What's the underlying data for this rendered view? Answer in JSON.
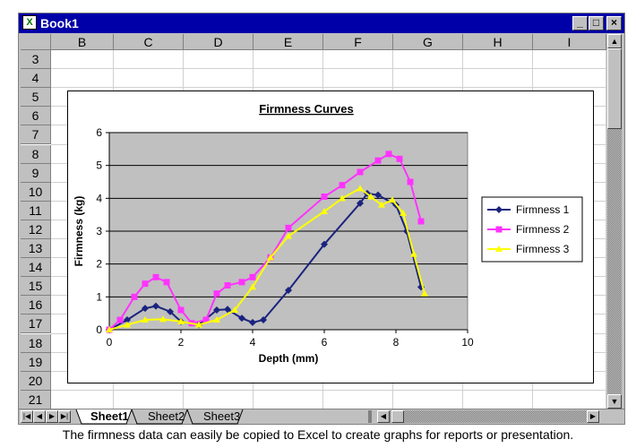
{
  "window": {
    "title": "Book1",
    "icon": "excel-icon"
  },
  "columns": [
    "B",
    "C",
    "D",
    "E",
    "F",
    "G",
    "H",
    "I"
  ],
  "rows": [
    "3",
    "4",
    "5",
    "6",
    "7",
    "8",
    "9",
    "10",
    "11",
    "12",
    "13",
    "14",
    "15",
    "16",
    "17",
    "18",
    "19",
    "20",
    "21"
  ],
  "sheets": [
    "Sheet1",
    "Sheet2",
    "Sheet3"
  ],
  "active_sheet": "Sheet1",
  "caption": "The firmness data can easily be copied to Excel to create graphs for reports or presentation.",
  "colors": {
    "titlebar": "#0000a8",
    "plot_bg": "#c0c0c0",
    "series1": "#1a237e",
    "series2": "#ff33ff",
    "series3": "#ffff00"
  },
  "chart_data": {
    "type": "scatter",
    "title": "Firmness Curves",
    "xlabel": "Depth (mm)",
    "ylabel": "Firmness (kg)",
    "xlim": [
      0,
      10
    ],
    "ylim": [
      0,
      6
    ],
    "xticks": [
      0,
      2,
      4,
      6,
      8,
      10
    ],
    "yticks": [
      0,
      1,
      2,
      3,
      4,
      5,
      6
    ],
    "grid": "horizontal",
    "legend_position": "right",
    "series": [
      {
        "name": "Firmness 1",
        "marker": "diamond",
        "color": "#1a237e",
        "points": [
          [
            0,
            0
          ],
          [
            0.5,
            0.3
          ],
          [
            1,
            0.65
          ],
          [
            1.3,
            0.72
          ],
          [
            1.7,
            0.55
          ],
          [
            2,
            0.25
          ],
          [
            2.5,
            0.15
          ],
          [
            3,
            0.6
          ],
          [
            3.3,
            0.62
          ],
          [
            3.7,
            0.35
          ],
          [
            4,
            0.22
          ],
          [
            4.3,
            0.3
          ],
          [
            5,
            1.2
          ],
          [
            6,
            2.6
          ],
          [
            7,
            3.85
          ],
          [
            7.2,
            4.15
          ],
          [
            7.5,
            4.1
          ],
          [
            8,
            3.8
          ],
          [
            8.3,
            3
          ],
          [
            8.7,
            1.3
          ]
        ]
      },
      {
        "name": "Firmness 2",
        "marker": "square",
        "color": "#ff33ff",
        "points": [
          [
            0,
            0
          ],
          [
            0.3,
            0.3
          ],
          [
            0.7,
            1
          ],
          [
            1,
            1.4
          ],
          [
            1.3,
            1.6
          ],
          [
            1.6,
            1.45
          ],
          [
            2,
            0.6
          ],
          [
            2.3,
            0.2
          ],
          [
            2.7,
            0.3
          ],
          [
            3,
            1.1
          ],
          [
            3.3,
            1.35
          ],
          [
            3.7,
            1.45
          ],
          [
            4,
            1.6
          ],
          [
            4.5,
            2.2
          ],
          [
            5,
            3.1
          ],
          [
            6,
            4.05
          ],
          [
            6.5,
            4.4
          ],
          [
            7,
            4.8
          ],
          [
            7.5,
            5.15
          ],
          [
            7.8,
            5.35
          ],
          [
            8.1,
            5.2
          ],
          [
            8.4,
            4.5
          ],
          [
            8.7,
            3.3
          ]
        ]
      },
      {
        "name": "Firmness 3",
        "marker": "triangle",
        "color": "#ffff00",
        "points": [
          [
            0,
            0
          ],
          [
            0.5,
            0.15
          ],
          [
            1,
            0.3
          ],
          [
            1.5,
            0.32
          ],
          [
            2,
            0.25
          ],
          [
            2.5,
            0.15
          ],
          [
            3,
            0.3
          ],
          [
            3.5,
            0.6
          ],
          [
            4,
            1.3
          ],
          [
            4.5,
            2.2
          ],
          [
            5,
            2.85
          ],
          [
            6,
            3.6
          ],
          [
            6.5,
            4.0
          ],
          [
            7,
            4.3
          ],
          [
            7.3,
            4.05
          ],
          [
            7.6,
            3.8
          ],
          [
            7.9,
            3.95
          ],
          [
            8.2,
            3.55
          ],
          [
            8.5,
            2.3
          ],
          [
            8.8,
            1.1
          ]
        ]
      }
    ]
  }
}
